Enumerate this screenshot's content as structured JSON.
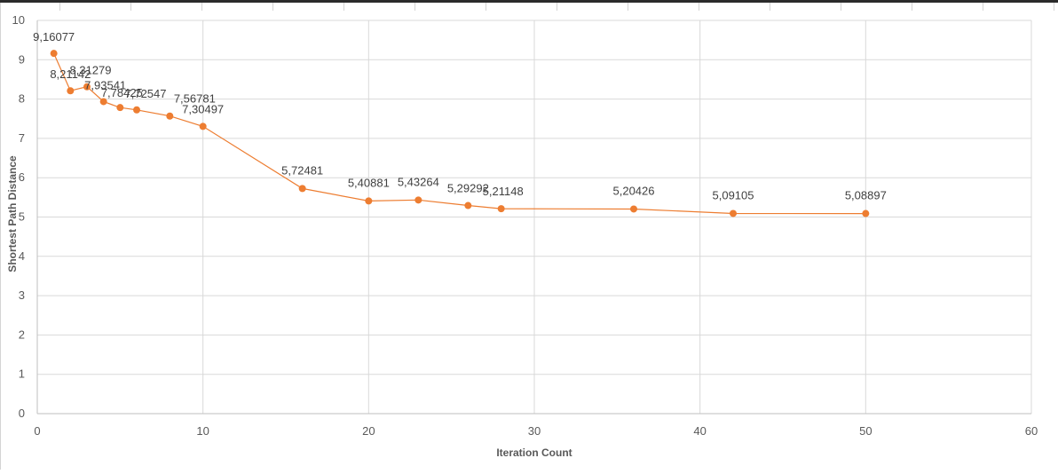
{
  "chart_data": {
    "type": "scatter",
    "title": "",
    "xlabel": "Iteration Count",
    "ylabel": "Shortest Path Distance",
    "xlim": [
      0,
      60
    ],
    "ylim": [
      0,
      10
    ],
    "x_ticks": [
      "0",
      "10",
      "20",
      "30",
      "40",
      "50",
      "60"
    ],
    "y_ticks": [
      "0",
      "1",
      "2",
      "3",
      "4",
      "5",
      "6",
      "7",
      "8",
      "9",
      "10"
    ],
    "grid": true,
    "legend": "none",
    "series": [
      {
        "color": "#ED7D31",
        "x": [
          1,
          2,
          3,
          4,
          5,
          6,
          8,
          10,
          16,
          20,
          23,
          26,
          28,
          36,
          42,
          50
        ],
        "y": [
          9.16077,
          8.21142,
          8.31279,
          7.93541,
          7.78425,
          7.72547,
          7.56781,
          7.30497,
          5.72481,
          5.40881,
          5.43264,
          5.29292,
          5.21148,
          5.20426,
          5.09105,
          5.08897
        ],
        "data_labels": [
          "9,16077",
          "8,21142",
          "8,31279",
          "7,93541",
          "7,78425",
          "7,72547",
          "7,56781",
          "7,30497",
          "5,72481",
          "5,40881",
          "5,43264",
          "5,29292",
          "5,21148",
          "5,20426",
          "5,09105",
          "5,08897"
        ]
      }
    ],
    "colors": {
      "grid": "#D9D9D9",
      "axis_text": "#595959",
      "label_text": "#404040",
      "series": "#ED7D31"
    }
  }
}
